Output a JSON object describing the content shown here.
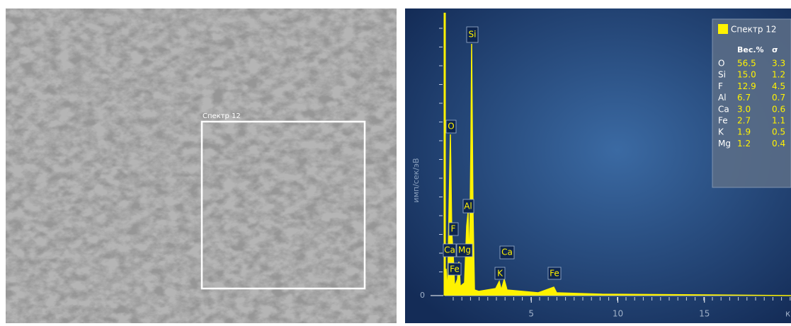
{
  "sem_image": {
    "label": "Спектр 12"
  },
  "spectrum": {
    "y_label": "имп/сек/эВ",
    "x_unit": "к",
    "xlim": [
      0,
      20
    ],
    "xticks": [
      5,
      10,
      15
    ],
    "yticks": [
      0
    ],
    "peaks": [
      "Si",
      "O",
      "Al",
      "F",
      "Ca",
      "Mg",
      "Fe",
      "K",
      "Ca",
      "Fe"
    ]
  },
  "legend": {
    "title": "Спектр 12",
    "headers": [
      "Вес.%",
      "σ"
    ],
    "rows": [
      [
        "O",
        "56.5",
        "3.3"
      ],
      [
        "Si",
        "15.0",
        "1.2"
      ],
      [
        "F",
        "12.9",
        "4.5"
      ],
      [
        "Al",
        "6.7",
        "0.7"
      ],
      [
        "Ca",
        "3.0",
        "0.6"
      ],
      [
        "Fe",
        "2.7",
        "1.1"
      ],
      [
        "K",
        "1.9",
        "0.5"
      ],
      [
        "Mg",
        "1.2",
        "0.4"
      ]
    ]
  }
}
